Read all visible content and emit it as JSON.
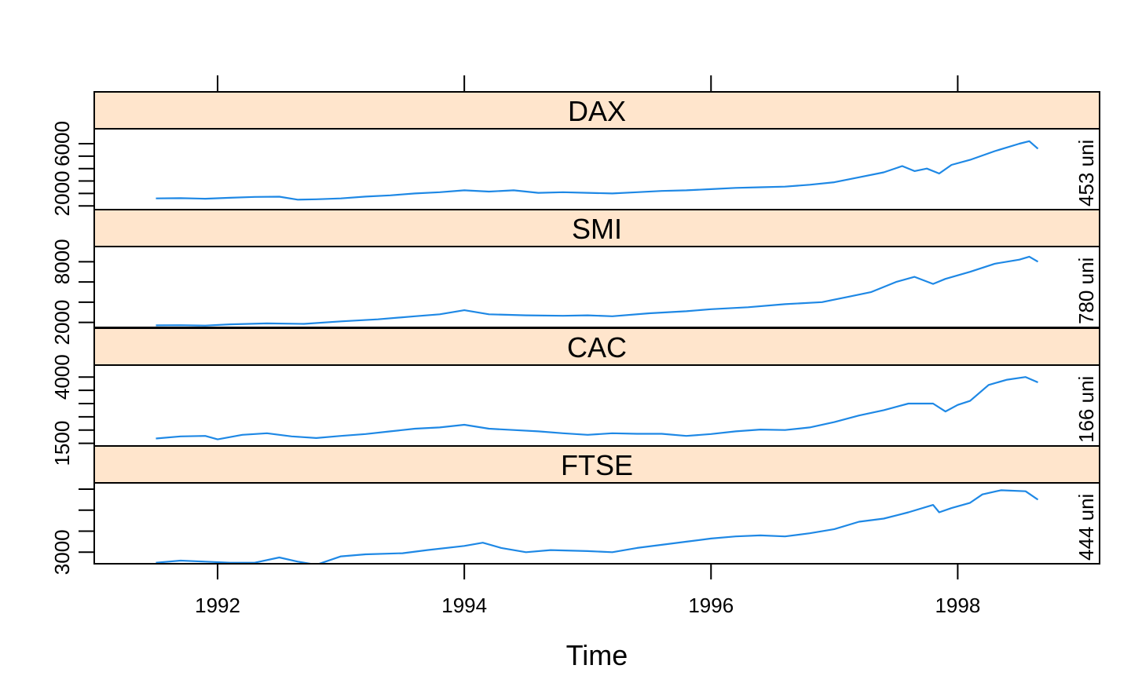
{
  "colors": {
    "strip": "#FFE5CC",
    "line": "#1E88E5",
    "cut_text": "#000000"
  },
  "chart_data": {
    "type": "line",
    "xlabel": "Time",
    "xlim": [
      1991.0,
      1999.15
    ],
    "x_ticks": [
      1992,
      1994,
      1996,
      1998
    ],
    "x_tick_labels": [
      "1992",
      "1994",
      "1996",
      "1998"
    ],
    "panels": [
      {
        "name": "DAX",
        "ylim": [
          700,
          7200
        ],
        "y_ticks": [
          1000,
          2000,
          3000,
          4000,
          5000,
          6000
        ],
        "y_tick_labels": [
          "2000",
          "6000"
        ],
        "y_tick_label_values": [
          2000,
          6000
        ],
        "right_label": "453 uni",
        "x": [
          1991.5,
          1991.7,
          1991.9,
          1992.1,
          1992.3,
          1992.5,
          1992.65,
          1992.8,
          1993.0,
          1993.2,
          1993.4,
          1993.6,
          1993.8,
          1994.0,
          1994.2,
          1994.4,
          1994.6,
          1994.8,
          1995.0,
          1995.2,
          1995.4,
          1995.6,
          1995.8,
          1996.0,
          1996.2,
          1996.4,
          1996.6,
          1996.8,
          1997.0,
          1997.2,
          1997.4,
          1997.55,
          1997.65,
          1997.75,
          1997.85,
          1997.95,
          1998.1,
          1998.3,
          1998.5,
          1998.58,
          1998.65
        ],
        "y": [
          1600,
          1620,
          1580,
          1650,
          1720,
          1740,
          1500,
          1530,
          1600,
          1750,
          1850,
          2000,
          2100,
          2250,
          2150,
          2250,
          2050,
          2100,
          2050,
          2000,
          2100,
          2200,
          2250,
          2350,
          2450,
          2500,
          2550,
          2700,
          2900,
          3300,
          3700,
          4200,
          3800,
          4000,
          3600,
          4300,
          4700,
          5400,
          6000,
          6200,
          5600
        ]
      },
      {
        "name": "SMI",
        "ylim": [
          1500,
          9500
        ],
        "y_ticks": [
          2000,
          4000,
          6000,
          8000
        ],
        "y_tick_labels": [
          "2000",
          "8000"
        ],
        "y_tick_label_values": [
          2000,
          8000
        ],
        "right_label": "780 uni",
        "x": [
          1991.5,
          1991.7,
          1991.9,
          1992.1,
          1992.4,
          1992.7,
          1993.0,
          1993.3,
          1993.6,
          1993.8,
          1994.0,
          1994.2,
          1994.5,
          1994.8,
          1995.0,
          1995.2,
          1995.5,
          1995.8,
          1996.0,
          1996.3,
          1996.6,
          1996.9,
          1997.1,
          1997.3,
          1997.5,
          1997.65,
          1997.8,
          1997.9,
          1998.1,
          1998.3,
          1998.5,
          1998.58,
          1998.65
        ],
        "y": [
          1700,
          1720,
          1680,
          1800,
          1900,
          1850,
          2100,
          2300,
          2600,
          2800,
          3200,
          2800,
          2700,
          2650,
          2700,
          2600,
          2900,
          3100,
          3300,
          3500,
          3800,
          4000,
          4500,
          5000,
          6000,
          6500,
          5800,
          6300,
          7000,
          7800,
          8200,
          8500,
          8000
        ]
      },
      {
        "name": "CAC",
        "ylim": [
          1400,
          4450
        ],
        "y_ticks": [
          1500,
          2000,
          2500,
          3000,
          3500,
          4000
        ],
        "y_tick_labels": [
          "1500",
          "4000"
        ],
        "y_tick_label_values": [
          1500,
          4000
        ],
        "right_label": "166 uni",
        "x": [
          1991.5,
          1991.7,
          1991.9,
          1992.0,
          1992.2,
          1992.4,
          1992.6,
          1992.8,
          1993.0,
          1993.2,
          1993.4,
          1993.6,
          1993.8,
          1994.0,
          1994.2,
          1994.4,
          1994.6,
          1994.8,
          1995.0,
          1995.2,
          1995.4,
          1995.6,
          1995.8,
          1996.0,
          1996.2,
          1996.4,
          1996.6,
          1996.8,
          1997.0,
          1997.2,
          1997.4,
          1997.6,
          1997.8,
          1997.9,
          1998.0,
          1998.1,
          1998.25,
          1998.4,
          1998.55,
          1998.65
        ],
        "y": [
          1680,
          1760,
          1780,
          1650,
          1820,
          1880,
          1760,
          1700,
          1780,
          1850,
          1950,
          2050,
          2100,
          2200,
          2050,
          2000,
          1950,
          1880,
          1820,
          1880,
          1860,
          1860,
          1780,
          1850,
          1950,
          2020,
          2000,
          2100,
          2300,
          2550,
          2750,
          3000,
          3000,
          2700,
          2950,
          3100,
          3700,
          3900,
          4000,
          3800
        ]
      },
      {
        "name": "FTSE",
        "ylim": [
          2450,
          6300
        ],
        "y_ticks": [
          3000,
          4000,
          5000,
          6000
        ],
        "y_tick_labels": [
          "3000"
        ],
        "y_tick_label_values": [
          3000
        ],
        "right_label": "444 uni",
        "x": [
          1991.5,
          1991.7,
          1991.9,
          1992.1,
          1992.3,
          1992.5,
          1992.65,
          1992.8,
          1993.0,
          1993.2,
          1993.5,
          1993.7,
          1994.0,
          1994.15,
          1994.3,
          1994.5,
          1994.7,
          1995.0,
          1995.2,
          1995.4,
          1995.6,
          1995.8,
          1996.0,
          1996.2,
          1996.4,
          1996.6,
          1996.8,
          1997.0,
          1997.2,
          1997.4,
          1997.6,
          1997.8,
          1997.85,
          1997.95,
          1998.1,
          1998.2,
          1998.35,
          1998.55,
          1998.65
        ],
        "y": [
          2500,
          2600,
          2550,
          2500,
          2500,
          2750,
          2550,
          2400,
          2800,
          2900,
          2950,
          3100,
          3300,
          3450,
          3200,
          3000,
          3100,
          3050,
          3000,
          3200,
          3350,
          3500,
          3650,
          3750,
          3800,
          3750,
          3900,
          4100,
          4450,
          4600,
          4900,
          5250,
          4900,
          5100,
          5350,
          5750,
          5950,
          5900,
          5500
        ]
      }
    ]
  }
}
